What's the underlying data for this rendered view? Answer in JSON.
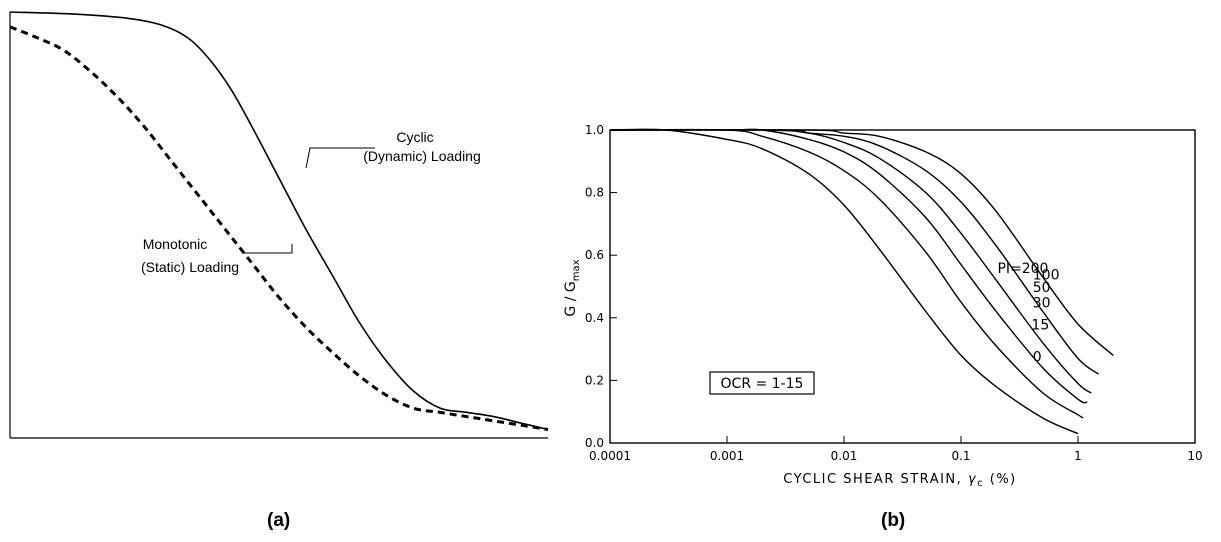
{
  "panels": {
    "a_label": "(a)",
    "b_label": "(b)"
  },
  "chart_data": [
    {
      "type": "line",
      "title": "",
      "xlabel": "",
      "ylabel": "",
      "grid": false,
      "series": [
        {
          "label": "Cyclic\n(Dynamic) Loading",
          "style": "solid",
          "x": [
            0.0,
            0.12,
            0.22,
            0.28,
            0.33,
            0.37,
            0.41,
            0.45,
            0.5,
            0.55,
            0.6,
            0.65,
            0.7,
            0.75,
            0.8,
            0.85,
            0.9,
            0.95,
            1.0
          ],
          "y": [
            1.0,
            0.995,
            0.985,
            0.97,
            0.94,
            0.89,
            0.82,
            0.73,
            0.61,
            0.49,
            0.38,
            0.27,
            0.18,
            0.11,
            0.07,
            0.06,
            0.05,
            0.035,
            0.02
          ]
        },
        {
          "label": "Monotonic\n(Static) Loading",
          "style": "dashed",
          "x": [
            0.0,
            0.05,
            0.1,
            0.15,
            0.2,
            0.25,
            0.3,
            0.35,
            0.4,
            0.45,
            0.5,
            0.55,
            0.6,
            0.65,
            0.7,
            0.75,
            0.8,
            0.85,
            0.9,
            0.95,
            1.0
          ],
          "y": [
            0.965,
            0.94,
            0.91,
            0.86,
            0.8,
            0.73,
            0.65,
            0.57,
            0.49,
            0.41,
            0.33,
            0.26,
            0.2,
            0.145,
            0.1,
            0.07,
            0.06,
            0.05,
            0.04,
            0.03,
            0.02
          ]
        }
      ]
    },
    {
      "type": "line",
      "title": "",
      "xlabel": "CYCLIC SHEAR STRAIN, γc (%)",
      "ylabel": "G / Gmax",
      "xscale": "log",
      "xlim": [
        0.0001,
        10
      ],
      "ylim": [
        0.0,
        1.0
      ],
      "xticks": [
        "0.0001",
        "0.001",
        "0.01",
        "0.1",
        "1",
        "10"
      ],
      "yticks": [
        "0.0",
        "0.2",
        "0.4",
        "0.6",
        "0.8",
        "1.0"
      ],
      "grid": false,
      "annotation": "OCR = 1-15",
      "series": [
        {
          "label": "0",
          "x": [
            0.0001,
            0.0003,
            0.001,
            0.002,
            0.005,
            0.01,
            0.02,
            0.05,
            0.1,
            0.2,
            0.5,
            1.0
          ],
          "y": [
            1.0,
            1.0,
            0.97,
            0.94,
            0.86,
            0.76,
            0.62,
            0.42,
            0.28,
            0.18,
            0.08,
            0.03
          ]
        },
        {
          "label": "15",
          "x": [
            0.0001,
            0.001,
            0.002,
            0.005,
            0.01,
            0.02,
            0.05,
            0.1,
            0.2,
            0.5,
            1.0,
            1.1
          ],
          "y": [
            1.0,
            1.0,
            0.98,
            0.93,
            0.87,
            0.78,
            0.61,
            0.45,
            0.31,
            0.16,
            0.09,
            0.08
          ]
        },
        {
          "label": "30",
          "x": [
            0.0001,
            0.001,
            0.002,
            0.005,
            0.01,
            0.02,
            0.05,
            0.1,
            0.2,
            0.5,
            1.0,
            1.2
          ],
          "y": [
            1.0,
            1.0,
            1.0,
            0.97,
            0.93,
            0.86,
            0.72,
            0.57,
            0.42,
            0.24,
            0.14,
            0.13
          ]
        },
        {
          "label": "50",
          "x": [
            0.0001,
            0.002,
            0.005,
            0.01,
            0.02,
            0.05,
            0.1,
            0.2,
            0.5,
            1.0,
            1.3
          ],
          "y": [
            1.0,
            1.0,
            0.99,
            0.96,
            0.91,
            0.8,
            0.67,
            0.52,
            0.32,
            0.19,
            0.16
          ]
        },
        {
          "label": "100",
          "x": [
            0.0001,
            0.003,
            0.005,
            0.01,
            0.02,
            0.05,
            0.1,
            0.2,
            0.5,
            1.0,
            1.5
          ],
          "y": [
            1.0,
            1.0,
            0.99,
            0.98,
            0.95,
            0.87,
            0.77,
            0.63,
            0.42,
            0.27,
            0.22
          ]
        },
        {
          "label": "PI=200",
          "x": [
            0.0001,
            0.005,
            0.01,
            0.02,
            0.05,
            0.1,
            0.2,
            0.5,
            1.0,
            2.0
          ],
          "y": [
            1.0,
            1.0,
            0.99,
            0.98,
            0.93,
            0.86,
            0.74,
            0.53,
            0.38,
            0.28
          ]
        }
      ]
    }
  ]
}
